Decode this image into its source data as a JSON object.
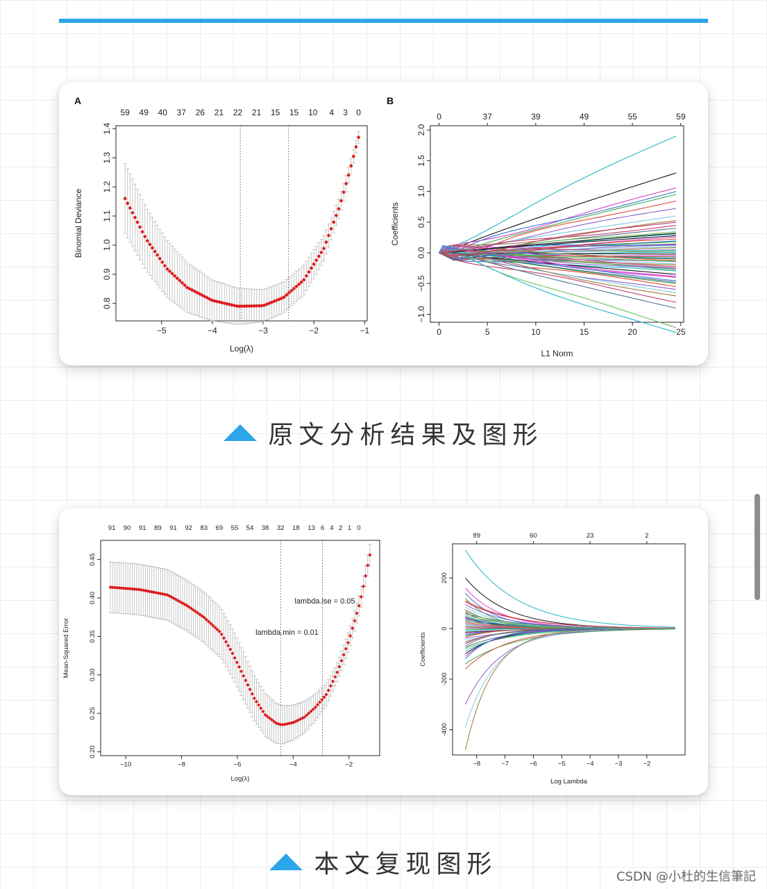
{
  "captions": {
    "original": "原文分析结果及图形",
    "reproduction": "本文复现图形"
  },
  "watermark": "CSDN @小杜的生信筆記",
  "colors": {
    "accent": "#2ba6ea",
    "dot": "#dd1d1d",
    "errorbar": "#b8b8b8",
    "axis": "#222222"
  },
  "panels": {
    "A": {
      "label": "A"
    },
    "B": {
      "label": "B"
    }
  },
  "chart_data": [
    {
      "id": "A",
      "type": "scatter",
      "subtype": "cv-curve-with-errorbars",
      "xlabel": "Log(λ)",
      "ylabel": "Binomial Deviance",
      "xlim": [
        -5.9,
        -0.95
      ],
      "ylim": [
        0.74,
        1.41
      ],
      "xticks": [
        -5,
        -4,
        -3,
        -2,
        -1
      ],
      "yticks": [
        0.8,
        0.9,
        1.0,
        1.1,
        1.2,
        1.3,
        1.4
      ],
      "top_axis": {
        "x": [
          -5.72,
          -5.35,
          -4.98,
          -4.61,
          -4.24,
          -3.87,
          -3.5,
          -3.13,
          -2.76,
          -2.39,
          -2.02,
          -1.65,
          -1.38,
          -1.12
        ],
        "labels": [
          "59",
          "49",
          "40",
          "37",
          "26",
          "21",
          "22",
          "21",
          "15",
          "15",
          "10",
          "4",
          "3",
          "0"
        ]
      },
      "vlines": [
        -3.45,
        -2.5
      ],
      "curve": {
        "x_range": [
          -5.72,
          -1.12
        ],
        "n_points": 95,
        "knots": [
          [
            -5.72,
            1.16
          ],
          [
            -5.3,
            1.02
          ],
          [
            -4.9,
            0.92
          ],
          [
            -4.5,
            0.855
          ],
          [
            -4.0,
            0.81
          ],
          [
            -3.5,
            0.79
          ],
          [
            -3.0,
            0.792
          ],
          [
            -2.6,
            0.82
          ],
          [
            -2.2,
            0.88
          ],
          [
            -1.8,
            0.99
          ],
          [
            -1.5,
            1.13
          ],
          [
            -1.3,
            1.25
          ],
          [
            -1.12,
            1.37
          ]
        ],
        "error_knots": [
          [
            -5.72,
            0.12
          ],
          [
            -4.8,
            0.095
          ],
          [
            -4.0,
            0.07
          ],
          [
            -3.0,
            0.055
          ],
          [
            -2.0,
            0.05
          ],
          [
            -1.12,
            0.02
          ]
        ]
      },
      "grid": false
    },
    {
      "id": "B",
      "type": "line",
      "subtype": "coefficient-path",
      "xlabel": "L1 Norm",
      "ylabel": "Coefficients",
      "xlim": [
        -0.9,
        25.3
      ],
      "ylim": [
        -1.13,
        2.07
      ],
      "xticks": [
        0,
        5,
        10,
        15,
        20,
        25
      ],
      "yticks": [
        -1.0,
        -0.5,
        0.0,
        0.5,
        1.0,
        1.5,
        2.0
      ],
      "top_axis": {
        "x": [
          0,
          5,
          10,
          15,
          20,
          25
        ],
        "labels": [
          "0",
          "37",
          "39",
          "49",
          "55",
          "59"
        ]
      },
      "x_end": 24.5,
      "n_lines": 59,
      "line_end_values": [
        1.9,
        1.3,
        1.05,
        1.0,
        0.95,
        0.85,
        0.72,
        0.6,
        0.52,
        0.45,
        0.4,
        0.35,
        0.3,
        0.28,
        0.25,
        0.2,
        0.18,
        0.15,
        0.12,
        0.1,
        0.08,
        0.06,
        0.04,
        0.02,
        0.0,
        -0.02,
        -0.05,
        -0.08,
        -0.1,
        -0.12,
        -0.15,
        -0.18,
        -0.2,
        -0.22,
        -0.25,
        -0.28,
        -0.3,
        -0.35,
        -0.4,
        -0.45,
        -0.5,
        -0.55,
        -0.6,
        -0.65,
        -0.7,
        -0.8,
        -0.9,
        -1.22,
        -1.3,
        0.32,
        -0.38,
        0.14,
        -0.14,
        0.22,
        -0.26,
        0.05,
        -0.06,
        0.5,
        -0.48
      ],
      "grid": false
    },
    {
      "id": "C",
      "type": "scatter",
      "subtype": "cv-curve-with-errorbars",
      "xlabel": "Log(λ)",
      "ylabel": "Mean-Squared Error",
      "xlim": [
        -10.9,
        -0.9
      ],
      "ylim": [
        0.195,
        0.475
      ],
      "xticks": [
        -10,
        -8,
        -6,
        -4,
        -2
      ],
      "yticks": [
        0.2,
        0.25,
        0.3,
        0.35,
        0.4,
        0.45
      ],
      "top_axis": {
        "x": [
          -10.5,
          -9.95,
          -9.4,
          -8.85,
          -8.3,
          -7.75,
          -7.2,
          -6.65,
          -6.1,
          -5.55,
          -5.0,
          -4.45,
          -3.9,
          -3.35,
          -2.95,
          -2.62,
          -2.3,
          -1.98,
          -1.65,
          -1.3
        ],
        "labels": [
          "91",
          "90",
          "91",
          "89",
          "91",
          "92",
          "83",
          "69",
          "55",
          "54",
          "38",
          "32",
          "18",
          "13",
          "6",
          "4",
          "2",
          "1",
          "0",
          ""
        ]
      },
      "vlines": [
        -4.45,
        -2.95
      ],
      "annotations": [
        {
          "text": "lambda.lse = 0.05",
          "x": -3.95,
          "y": 0.393
        },
        {
          "text": "lambda.min = 0.01",
          "x": -5.35,
          "y": 0.352
        }
      ],
      "curve": {
        "x_range": [
          -10.55,
          -1.25
        ],
        "n_points": 120,
        "knots": [
          [
            -10.55,
            0.414
          ],
          [
            -9.5,
            0.411
          ],
          [
            -8.5,
            0.404
          ],
          [
            -7.8,
            0.39
          ],
          [
            -7.2,
            0.375
          ],
          [
            -6.6,
            0.355
          ],
          [
            -6.2,
            0.33
          ],
          [
            -5.8,
            0.3
          ],
          [
            -5.4,
            0.27
          ],
          [
            -5.0,
            0.248
          ],
          [
            -4.6,
            0.237
          ],
          [
            -4.4,
            0.235
          ],
          [
            -4.0,
            0.238
          ],
          [
            -3.6,
            0.245
          ],
          [
            -3.2,
            0.258
          ],
          [
            -2.8,
            0.275
          ],
          [
            -2.4,
            0.305
          ],
          [
            -2.0,
            0.345
          ],
          [
            -1.6,
            0.395
          ],
          [
            -1.25,
            0.456
          ]
        ],
        "error_knots": [
          [
            -10.55,
            0.033
          ],
          [
            -7.0,
            0.033
          ],
          [
            -6.0,
            0.032
          ],
          [
            -5.0,
            0.028
          ],
          [
            -4.4,
            0.025
          ],
          [
            -3.5,
            0.02
          ],
          [
            -2.5,
            0.012
          ],
          [
            -1.25,
            0.014
          ]
        ]
      },
      "grid": false
    },
    {
      "id": "D",
      "type": "line",
      "subtype": "coefficient-path",
      "xlabel": "Log Lambda",
      "ylabel": "Coefficients",
      "xlim": [
        -8.85,
        -0.65
      ],
      "ylim": [
        -500,
        335
      ],
      "xticks": [
        -8,
        -7,
        -6,
        -5,
        -4,
        -3,
        -2
      ],
      "yticks": [
        -400,
        -200,
        0,
        200
      ],
      "top_axis": {
        "x": [
          -8,
          -6,
          -4,
          -2
        ],
        "labels": [
          "89",
          "60",
          "23",
          "2"
        ]
      },
      "x_start": -8.4,
      "x_end": -1.0,
      "n_lines": 48,
      "line_start_values": [
        310,
        200,
        160,
        140,
        120,
        110,
        95,
        85,
        75,
        65,
        60,
        55,
        50,
        45,
        40,
        35,
        30,
        25,
        20,
        15,
        10,
        5,
        0,
        -5,
        -10,
        -15,
        -20,
        -25,
        -30,
        -35,
        -40,
        -50,
        -55,
        -60,
        -70,
        -80,
        -90,
        -100,
        -110,
        -120,
        -140,
        -160,
        -300,
        -390,
        -480,
        105,
        -75,
        70
      ],
      "grid": false
    }
  ]
}
